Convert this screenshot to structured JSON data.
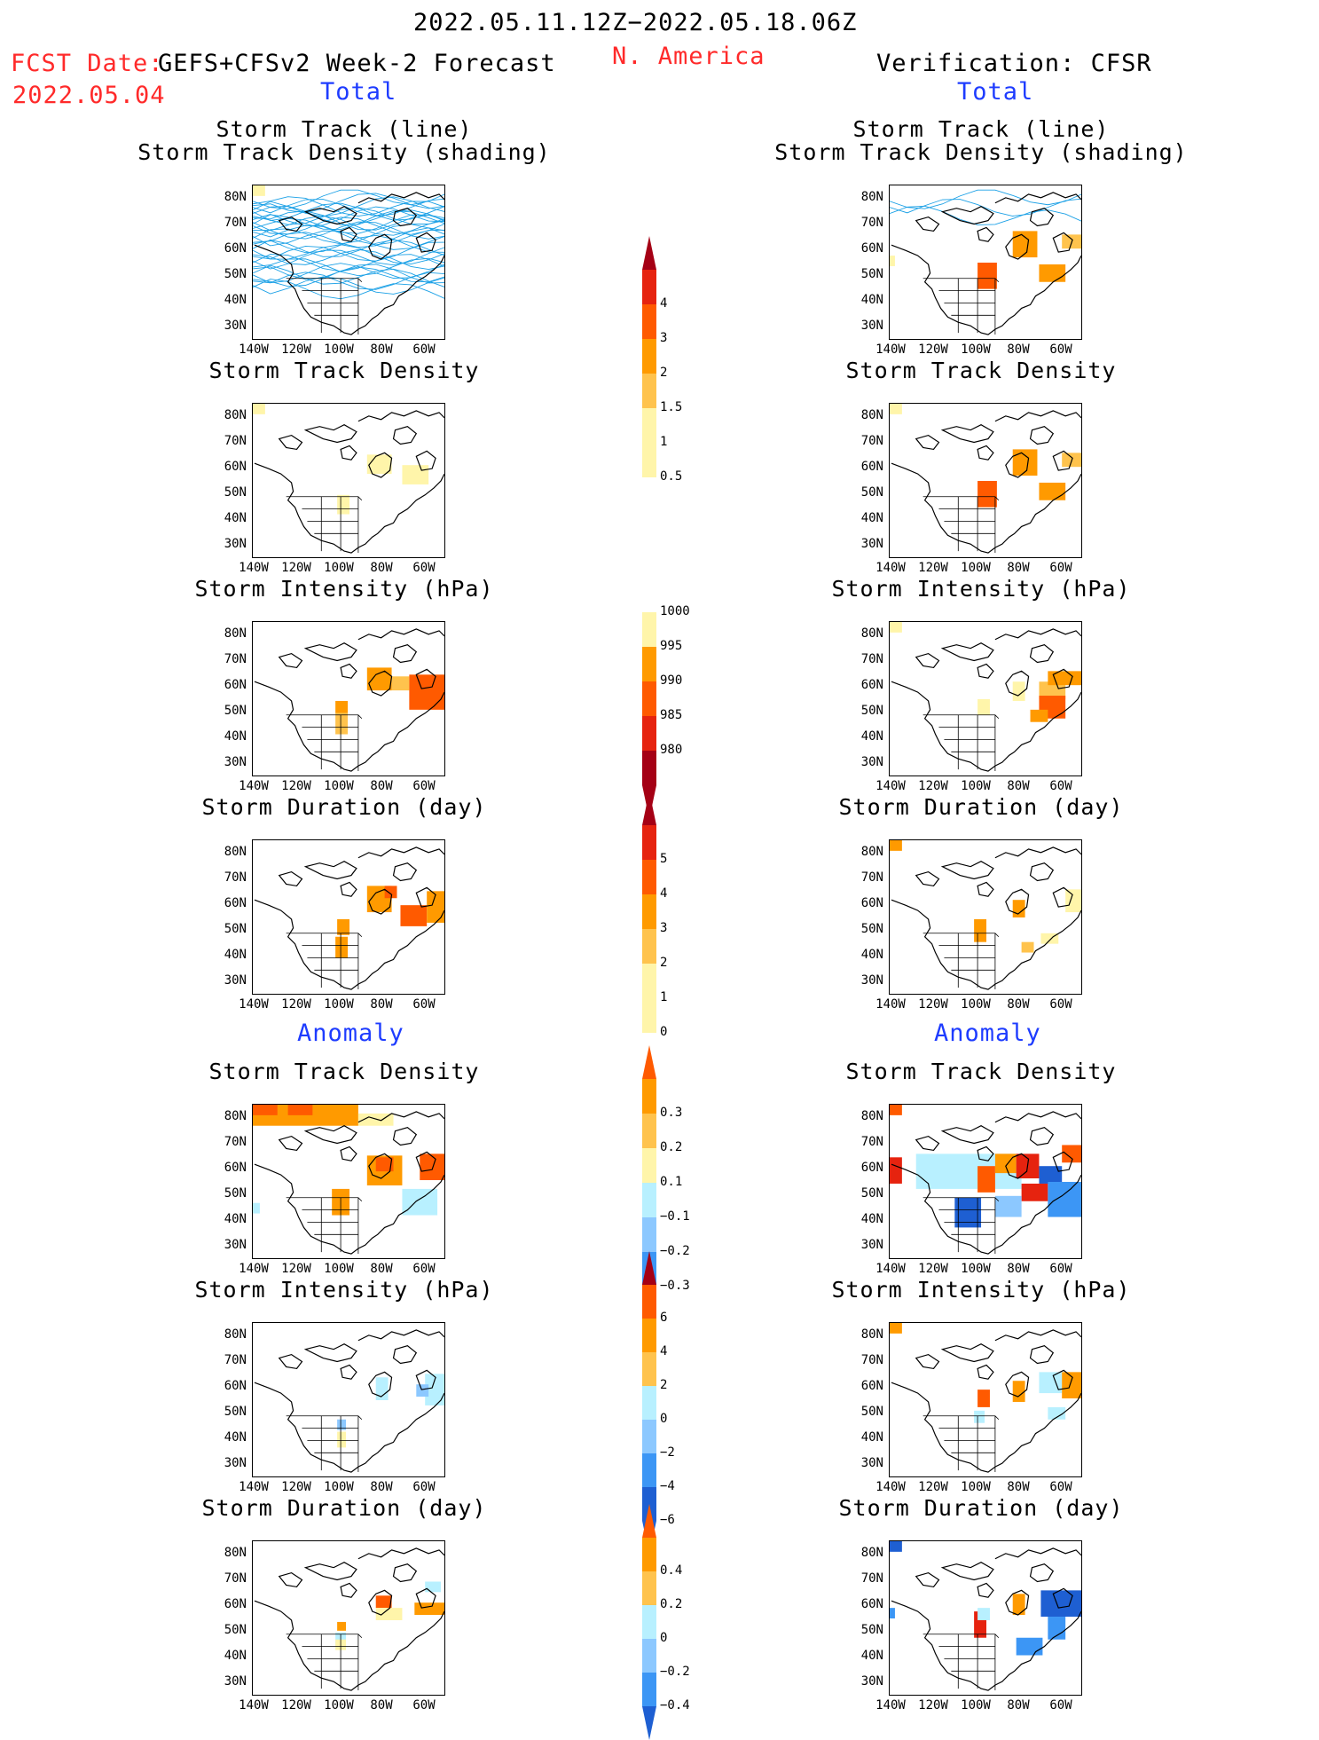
{
  "header": {
    "period": "2022.05.11.12Z−2022.05.18.06Z",
    "fcst_date_label": "FCST Date:",
    "fcst_date": "2022.05.04",
    "forecast_name": "GEFS+CFSv2 Week-2 Forecast",
    "region": "N. America",
    "verification": "Verification: CFSR"
  },
  "sections": {
    "total": "Total",
    "anomaly": "Anomaly"
  },
  "panel_titles": {
    "track_line": "Storm Track (line)",
    "track_shading": "Storm Track Density (shading)",
    "density": "Storm Track Density",
    "intensity": "Storm Intensity (hPa)",
    "duration": "Storm Duration (day)"
  },
  "axes": {
    "lat_labels": [
      "80N",
      "70N",
      "60N",
      "50N",
      "40N",
      "30N"
    ],
    "lon_labels": [
      "140W",
      "120W",
      "100W",
      "80W",
      "60W"
    ]
  },
  "colorbars": {
    "density_total": [
      "4",
      "3",
      "2",
      "1.5",
      "1",
      "0.5"
    ],
    "intensity_total": [
      "1000",
      "995",
      "990",
      "985",
      "980"
    ],
    "duration_total": [
      "5",
      "4",
      "3",
      "2",
      "1",
      "0"
    ],
    "density_anom": [
      "0.3",
      "0.2",
      "0.1",
      "−0.1",
      "−0.2",
      "−0.3"
    ],
    "intensity_anom": [
      "6",
      "4",
      "2",
      "0",
      "−2",
      "−4",
      "−6"
    ],
    "duration_anom": [
      "0.4",
      "0.2",
      "0",
      "−0.2",
      "−0.4"
    ]
  },
  "colors": {
    "dark_red": "#a50015",
    "red": "#e6230f",
    "orange_red": "#ff5a00",
    "orange": "#ff9a00",
    "light_orange": "#ffc34d",
    "pale_yellow": "#fff5aa",
    "pale_blue": "#b8f0ff",
    "light_blue": "#8cc8ff",
    "blue": "#3c96f5",
    "dark_blue": "#1e5fd2",
    "track_line": "#1aa0e6"
  }
}
